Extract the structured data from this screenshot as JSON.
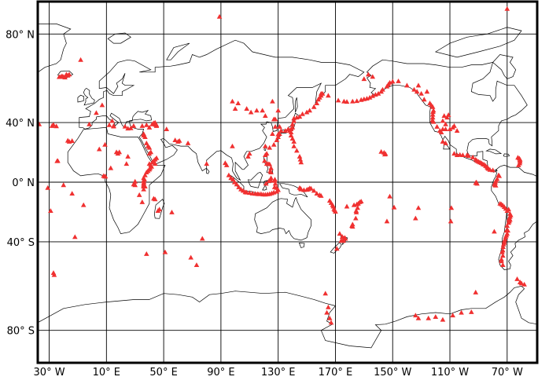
{
  "chart_data": {
    "type": "scatter",
    "projection": "miller",
    "lon_range": [
      -38,
      311
    ],
    "lat_range": [
      -90,
      90
    ],
    "grid": true,
    "marker": "triangle",
    "marker_color": "#f03030",
    "coastline_color": "#000000",
    "x_ticks": [
      {
        "lon": -30,
        "label": "30° W"
      },
      {
        "lon": 10,
        "label": "10° E"
      },
      {
        "lon": 50,
        "label": "50° E"
      },
      {
        "lon": 90,
        "label": "90° E"
      },
      {
        "lon": 130,
        "label": "130° E"
      },
      {
        "lon": 170,
        "label": "170° E"
      },
      {
        "lon": 210,
        "label": "150° W"
      },
      {
        "lon": 250,
        "label": "110° W"
      },
      {
        "lon": 290,
        "label": "70° W"
      }
    ],
    "y_ticks": [
      {
        "lat": 80,
        "label": "80° N"
      },
      {
        "lat": 40,
        "label": "40° N"
      },
      {
        "lat": 0,
        "label": "0° N"
      },
      {
        "lat": -40,
        "label": "40° S"
      },
      {
        "lat": -80,
        "label": "80° S"
      }
    ],
    "points": [
      [
        -22,
        64
      ],
      [
        -20,
        64
      ],
      [
        -18,
        65
      ],
      [
        -17,
        64.5
      ],
      [
        -19,
        63.7
      ],
      [
        -21,
        64.3
      ],
      [
        -16,
        65
      ],
      [
        -23,
        63.9
      ],
      [
        -8,
        71
      ],
      [
        -37,
        39
      ],
      [
        -28,
        38
      ],
      [
        -27,
        38.7
      ],
      [
        -25,
        37.8
      ],
      [
        -16,
        28
      ],
      [
        -14,
        28.5
      ],
      [
        -17,
        28.7
      ],
      [
        -24,
        15
      ],
      [
        -24.5,
        14.9
      ],
      [
        -14,
        -8
      ],
      [
        -12,
        -37
      ],
      [
        -6,
        -16
      ],
      [
        -29,
        -20
      ],
      [
        -27,
        -57
      ],
      [
        -26.5,
        -58
      ],
      [
        -31,
        -4
      ],
      [
        -20,
        -2
      ],
      [
        14,
        41
      ],
      [
        15,
        38
      ],
      [
        15,
        37.7
      ],
      [
        12,
        38.5
      ],
      [
        25,
        36.4
      ],
      [
        27,
        36.6
      ],
      [
        23,
        37.6
      ],
      [
        29,
        38
      ],
      [
        35,
        38
      ],
      [
        38,
        38.5
      ],
      [
        43,
        39.7
      ],
      [
        44,
        40
      ],
      [
        45,
        38
      ],
      [
        42,
        39
      ],
      [
        44.3,
        38.7
      ],
      [
        40,
        37
      ],
      [
        36,
        33
      ],
      [
        37,
        31
      ],
      [
        7,
        50
      ],
      [
        2.9,
        45.7
      ],
      [
        -2,
        39
      ],
      [
        40,
        24
      ],
      [
        41,
        21
      ],
      [
        43,
        15
      ],
      [
        42,
        14
      ],
      [
        44,
        13
      ],
      [
        45,
        17
      ],
      [
        38,
        27
      ],
      [
        39,
        25
      ],
      [
        36,
        32
      ],
      [
        44,
        16
      ],
      [
        40,
        20
      ],
      [
        40,
        13
      ],
      [
        41,
        12
      ],
      [
        41.5,
        11
      ],
      [
        40.5,
        10
      ],
      [
        40,
        9
      ],
      [
        39,
        8
      ],
      [
        38,
        7
      ],
      [
        37,
        5
      ],
      [
        36,
        3
      ],
      [
        36.5,
        2
      ],
      [
        36,
        1
      ],
      [
        36.2,
        0
      ],
      [
        36,
        -1
      ],
      [
        36,
        -2
      ],
      [
        35.9,
        -3
      ],
      [
        37,
        -3
      ],
      [
        29,
        -1.5
      ],
      [
        29.5,
        -1
      ],
      [
        30,
        0.5
      ],
      [
        33,
        -9
      ],
      [
        35,
        -14
      ],
      [
        36,
        -5
      ],
      [
        30,
        -2
      ],
      [
        9,
        4
      ],
      [
        8,
        4.5
      ],
      [
        9.2,
        4.2
      ],
      [
        13,
        10
      ],
      [
        17,
        21
      ],
      [
        18,
        20
      ],
      [
        19,
        21
      ],
      [
        25,
        18
      ],
      [
        24,
        13
      ],
      [
        5,
        23
      ],
      [
        9,
        26
      ],
      [
        43,
        -11.5
      ],
      [
        44,
        -12
      ],
      [
        47,
        -19
      ],
      [
        46,
        -20
      ],
      [
        55.7,
        -21
      ],
      [
        38,
        -47
      ],
      [
        51,
        -46
      ],
      [
        69,
        -49
      ],
      [
        73,
        -53
      ],
      [
        77,
        -38
      ],
      [
        45,
        38.5
      ],
      [
        52,
        36
      ],
      [
        58,
        29
      ],
      [
        61,
        28.6
      ],
      [
        60,
        28
      ],
      [
        67,
        27
      ],
      [
        80,
        13
      ],
      [
        94,
        12
      ],
      [
        93,
        13.5
      ],
      [
        98,
        52
      ],
      [
        102,
        51
      ],
      [
        100,
        48
      ],
      [
        108,
        48
      ],
      [
        111,
        46
      ],
      [
        115,
        47
      ],
      [
        121,
        44
      ],
      [
        119,
        47
      ],
      [
        127,
        42
      ],
      [
        128,
        42
      ],
      [
        130,
        47
      ],
      [
        98,
        25
      ],
      [
        110,
        20
      ],
      [
        109,
        18
      ],
      [
        126,
        52
      ],
      [
        89,
        85
      ],
      [
        160,
        55
      ],
      [
        158,
        53
      ],
      [
        159,
        54
      ],
      [
        161,
        56
      ],
      [
        157,
        51
      ],
      [
        155,
        49
      ],
      [
        152,
        47
      ],
      [
        150,
        46
      ],
      [
        147,
        45
      ],
      [
        145,
        43.5
      ],
      [
        143,
        43
      ],
      [
        141,
        42.5
      ],
      [
        141,
        41
      ],
      [
        140,
        39
      ],
      [
        140,
        37
      ],
      [
        139,
        36
      ],
      [
        138,
        35
      ],
      [
        139,
        34
      ],
      [
        139,
        32
      ],
      [
        140,
        30
      ],
      [
        141,
        28
      ],
      [
        141,
        25
      ],
      [
        143,
        22
      ],
      [
        145,
        18
      ],
      [
        145.5,
        16
      ],
      [
        146,
        14
      ],
      [
        130,
        31
      ],
      [
        129,
        29
      ],
      [
        127,
        26
      ],
      [
        124,
        24
      ],
      [
        121,
        25
      ],
      [
        126,
        33
      ],
      [
        128,
        37.5
      ],
      [
        131,
        37.5
      ],
      [
        131,
        33
      ],
      [
        130,
        32.7
      ],
      [
        132,
        35
      ],
      [
        135,
        35
      ],
      [
        137,
        36
      ],
      [
        120.5,
        15
      ],
      [
        122,
        13
      ],
      [
        123,
        13
      ],
      [
        124,
        12.7
      ],
      [
        125,
        10
      ],
      [
        124.5,
        8
      ],
      [
        125,
        7
      ],
      [
        121,
        19
      ],
      [
        122,
        20
      ],
      [
        95.5,
        5
      ],
      [
        97,
        3
      ],
      [
        98.5,
        2
      ],
      [
        99.5,
        0
      ],
      [
        101,
        -1.5
      ],
      [
        102.5,
        -3.5
      ],
      [
        104,
        -5
      ],
      [
        105.5,
        -6
      ],
      [
        107,
        -7
      ],
      [
        108,
        -7.2
      ],
      [
        110,
        -7.5
      ],
      [
        112,
        -7.9
      ],
      [
        114,
        -8.1
      ],
      [
        115.5,
        -8.3
      ],
      [
        116.5,
        -8.4
      ],
      [
        118,
        -8.3
      ],
      [
        119.5,
        -8.6
      ],
      [
        121,
        -8.7
      ],
      [
        122.5,
        -8.5
      ],
      [
        124,
        -8.3
      ],
      [
        125.5,
        -7.8
      ],
      [
        127,
        -7.2
      ],
      [
        129,
        -6.6
      ],
      [
        130,
        -5.5
      ],
      [
        129,
        -4
      ],
      [
        127.5,
        -3.5
      ],
      [
        128,
        -1
      ],
      [
        127.5,
        1
      ],
      [
        127.7,
        2
      ],
      [
        125,
        3
      ],
      [
        124.8,
        1.4
      ],
      [
        123.5,
        0.8
      ],
      [
        121.5,
        -1
      ],
      [
        145,
        -4
      ],
      [
        146,
        -5
      ],
      [
        148,
        -5.5
      ],
      [
        150,
        -5.3
      ],
      [
        151,
        -5
      ],
      [
        152,
        -4.3
      ],
      [
        153,
        -4.5
      ],
      [
        155,
        -6
      ],
      [
        157,
        -8
      ],
      [
        159,
        -9
      ],
      [
        160,
        -9.6
      ],
      [
        145.8,
        -4.6
      ],
      [
        166,
        -13
      ],
      [
        167,
        -14.5
      ],
      [
        168,
        -16
      ],
      [
        168.5,
        -17
      ],
      [
        169,
        -18.7
      ],
      [
        169.5,
        -19.5
      ],
      [
        170,
        -20.5
      ],
      [
        178,
        -17
      ],
      [
        185,
        -15.5
      ],
      [
        185.5,
        -18
      ],
      [
        184.5,
        -20
      ],
      [
        184.6,
        -21
      ],
      [
        184.2,
        -25
      ],
      [
        182,
        -29
      ],
      [
        181.5,
        -30
      ],
      [
        182,
        -30.5
      ],
      [
        183,
        -16
      ],
      [
        186,
        -15
      ],
      [
        176,
        -38
      ],
      [
        175.5,
        -39
      ],
      [
        175.6,
        -39.3
      ],
      [
        176.5,
        -37.5
      ],
      [
        177,
        -38
      ],
      [
        174,
        -39.3
      ],
      [
        174.8,
        -36.9
      ],
      [
        173,
        -35
      ],
      [
        171,
        -44
      ],
      [
        187,
        -14
      ],
      [
        188,
        -13.5
      ],
      [
        204.5,
        19.5
      ],
      [
        205,
        19.8
      ],
      [
        204,
        20.7
      ],
      [
        202,
        21.3
      ],
      [
        211,
        -17.6
      ],
      [
        226,
        -25
      ],
      [
        250.6,
        -27
      ],
      [
        268,
        -0.5
      ],
      [
        269,
        -1
      ],
      [
        268.5,
        0
      ],
      [
        281,
        -33.6
      ],
      [
        208,
        -10
      ],
      [
        206,
        -27
      ],
      [
        228,
        -18
      ],
      [
        251,
        -18
      ],
      [
        160,
        56
      ],
      [
        165,
        55
      ],
      [
        172,
        52.5
      ],
      [
        176,
        52
      ],
      [
        178,
        51.8
      ],
      [
        182,
        52
      ],
      [
        185,
        52.2
      ],
      [
        188,
        52.8
      ],
      [
        190,
        53.2
      ],
      [
        192,
        53.5
      ],
      [
        194,
        54
      ],
      [
        196,
        54.8
      ],
      [
        198,
        55.5
      ],
      [
        200,
        56
      ],
      [
        202,
        57
      ],
      [
        203,
        58
      ],
      [
        206,
        59.5
      ],
      [
        207,
        60.5
      ],
      [
        208,
        61.3
      ],
      [
        210,
        61.8
      ],
      [
        190,
        63
      ],
      [
        193,
        65
      ],
      [
        196,
        64
      ],
      [
        214,
        62
      ],
      [
        220,
        60
      ],
      [
        225,
        58
      ],
      [
        227,
        57
      ],
      [
        230,
        56
      ],
      [
        232,
        53
      ],
      [
        236,
        51
      ],
      [
        237,
        50
      ],
      [
        234,
        57
      ],
      [
        228,
        60
      ],
      [
        238,
        49
      ],
      [
        238.5,
        47
      ],
      [
        238.2,
        46.2
      ],
      [
        238,
        44.7
      ],
      [
        238,
        43
      ],
      [
        237.8,
        41.4
      ],
      [
        238.5,
        40.5
      ],
      [
        241,
        37.5
      ],
      [
        243,
        35
      ],
      [
        245,
        36
      ],
      [
        244,
        34
      ],
      [
        247,
        36
      ],
      [
        250,
        36
      ],
      [
        252,
        37
      ],
      [
        255,
        35
      ],
      [
        253,
        38
      ],
      [
        248,
        43
      ],
      [
        246,
        44
      ],
      [
        249,
        44.5
      ],
      [
        245,
        41
      ],
      [
        247,
        39
      ],
      [
        245,
        28
      ],
      [
        247,
        27
      ],
      [
        253,
        20
      ],
      [
        255,
        19
      ],
      [
        257,
        19.2
      ],
      [
        259,
        19
      ],
      [
        262,
        19
      ],
      [
        263,
        18.5
      ],
      [
        266,
        17.5
      ],
      [
        268,
        16
      ],
      [
        269,
        15
      ],
      [
        270,
        14.5
      ],
      [
        271,
        14
      ],
      [
        272,
        13.5
      ],
      [
        273,
        12.8
      ],
      [
        274,
        12.4
      ],
      [
        275,
        11.5
      ],
      [
        276,
        10.6
      ],
      [
        276.5,
        10
      ],
      [
        277,
        9.5
      ],
      [
        278,
        8.8
      ],
      [
        280,
        8.5
      ],
      [
        298.5,
        16.7
      ],
      [
        298.8,
        15.5
      ],
      [
        299,
        14.5
      ],
      [
        298.8,
        13.3
      ],
      [
        298,
        12
      ],
      [
        297.5,
        17.3
      ],
      [
        299,
        16
      ],
      [
        284,
        5
      ],
      [
        284.5,
        4.4
      ],
      [
        283,
        2.3
      ],
      [
        282.2,
        1
      ],
      [
        281.7,
        0
      ],
      [
        281.4,
        -0.7
      ],
      [
        281.3,
        -1.5
      ],
      [
        281.6,
        -2
      ],
      [
        282,
        -2.3
      ],
      [
        285,
        -15
      ],
      [
        286,
        -15.5
      ],
      [
        287,
        -16.3
      ],
      [
        288,
        -17.3
      ],
      [
        289,
        -18.5
      ],
      [
        291,
        -19
      ],
      [
        290,
        -20
      ],
      [
        292,
        -22
      ],
      [
        292.5,
        -23
      ],
      [
        292,
        -24
      ],
      [
        291.5,
        -25
      ],
      [
        292,
        -26
      ],
      [
        291.5,
        -27
      ],
      [
        291,
        -28
      ],
      [
        290,
        -30
      ],
      [
        289.5,
        -33
      ],
      [
        290,
        -35
      ],
      [
        289.5,
        -36
      ],
      [
        289,
        -37
      ],
      [
        288.5,
        -38.5
      ],
      [
        288,
        -39.5
      ],
      [
        288,
        -40.5
      ],
      [
        287.5,
        -41.5
      ],
      [
        287.2,
        -43
      ],
      [
        287,
        -45
      ],
      [
        286.5,
        -46
      ],
      [
        287,
        -48
      ],
      [
        286,
        -50
      ],
      [
        286,
        -51
      ],
      [
        287,
        -53
      ],
      [
        291.3,
        -26
      ],
      [
        290.5,
        -33
      ],
      [
        163,
        -66.5
      ],
      [
        164,
        -74
      ],
      [
        166,
        -76
      ],
      [
        167,
        -77.5
      ],
      [
        165,
        -72
      ],
      [
        226,
        -75
      ],
      [
        228,
        -76
      ],
      [
        235,
        -76
      ],
      [
        240,
        -75.5
      ],
      [
        245,
        -76.5
      ],
      [
        252,
        -75
      ],
      [
        258,
        -74
      ],
      [
        265,
        -73.8
      ],
      [
        268,
        -66
      ],
      [
        300,
        -62
      ],
      [
        302,
        -62.5
      ],
      [
        299,
        -61.5
      ],
      [
        297,
        -60
      ],
      [
        290,
        87
      ]
    ]
  }
}
